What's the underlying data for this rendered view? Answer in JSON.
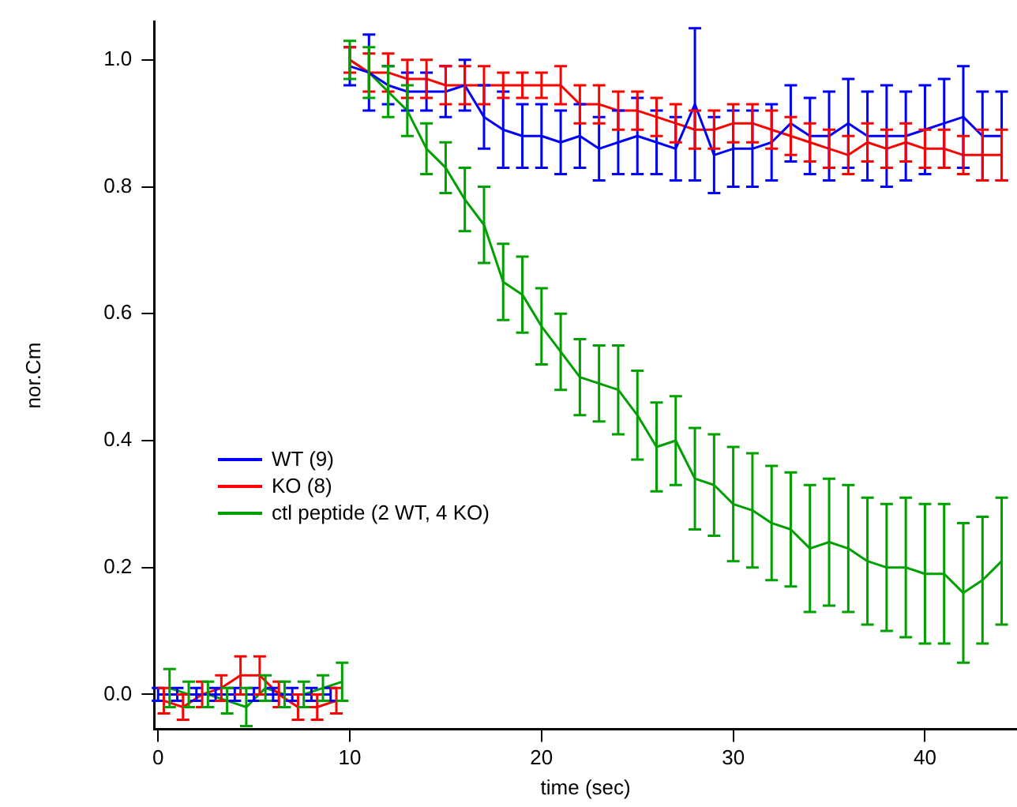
{
  "chart_data": {
    "type": "line",
    "xlabel": "time (sec)",
    "ylabel": "nor.Cm",
    "x": [
      0,
      1,
      2,
      3,
      4,
      5,
      6,
      7,
      8,
      9,
      9.5,
      10,
      11,
      12,
      13,
      14,
      15,
      16,
      17,
      18,
      19,
      20,
      21,
      22,
      23,
      24,
      25,
      26,
      27,
      28,
      29,
      30,
      31,
      32,
      33,
      34,
      35,
      36,
      37,
      38,
      39,
      40,
      41,
      42,
      43,
      44
    ],
    "series": [
      {
        "name": "WT (9)",
        "color": "#0000ff",
        "values": [
          0,
          0,
          0,
          0,
          0,
          0,
          0,
          0,
          0,
          0,
          null,
          0.99,
          0.98,
          0.96,
          0.95,
          0.95,
          0.95,
          0.96,
          0.91,
          0.89,
          0.88,
          0.88,
          0.87,
          0.88,
          0.86,
          0.87,
          0.88,
          0.87,
          0.86,
          0.93,
          0.85,
          0.86,
          0.86,
          0.87,
          0.9,
          0.88,
          0.88,
          0.9,
          0.88,
          0.88,
          0.88,
          0.89,
          0.9,
          0.91,
          0.88,
          0.88
        ],
        "errors": [
          0.01,
          0.01,
          0.01,
          0.01,
          0.01,
          0.01,
          0.01,
          0.01,
          0.01,
          0.01,
          null,
          0.03,
          0.06,
          0.03,
          0.03,
          0.03,
          0.04,
          0.04,
          0.05,
          0.06,
          0.05,
          0.05,
          0.05,
          0.05,
          0.05,
          0.05,
          0.06,
          0.05,
          0.05,
          0.12,
          0.06,
          0.06,
          0.06,
          0.06,
          0.06,
          0.06,
          0.07,
          0.07,
          0.07,
          0.08,
          0.07,
          0.07,
          0.07,
          0.08,
          0.07,
          0.07
        ]
      },
      {
        "name": "KO (8)",
        "color": "#ff0000",
        "x": [
          0.3,
          1.3,
          2.3,
          3.3,
          4.3,
          5.3,
          6.3,
          7.3,
          8.3,
          9.3,
          9.8,
          10,
          11,
          12,
          13,
          14,
          15,
          16,
          17,
          18,
          19,
          20,
          21,
          22,
          23,
          24,
          25,
          26,
          27,
          28,
          29,
          30,
          31,
          32,
          33,
          34,
          35,
          36,
          37,
          38,
          39,
          40,
          41,
          42,
          43,
          44
        ],
        "values": [
          -0.01,
          -0.02,
          0,
          0.01,
          0.03,
          0.03,
          0,
          -0.02,
          -0.02,
          -0.01,
          null,
          1,
          0.98,
          0.98,
          0.97,
          0.97,
          0.96,
          0.96,
          0.96,
          0.96,
          0.96,
          0.96,
          0.96,
          0.93,
          0.93,
          0.92,
          0.92,
          0.91,
          0.9,
          0.89,
          0.89,
          0.9,
          0.9,
          0.89,
          0.88,
          0.87,
          0.86,
          0.85,
          0.87,
          0.86,
          0.87,
          0.86,
          0.86,
          0.85,
          0.85,
          0.85
        ],
        "errors": [
          0.02,
          0.02,
          0.02,
          0.02,
          0.03,
          0.03,
          0.02,
          0.02,
          0.02,
          0.02,
          null,
          0.02,
          0.03,
          0.03,
          0.03,
          0.03,
          0.03,
          0.03,
          0.03,
          0.02,
          0.02,
          0.02,
          0.03,
          0.03,
          0.03,
          0.03,
          0.03,
          0.03,
          0.03,
          0.03,
          0.03,
          0.03,
          0.03,
          0.03,
          0.03,
          0.03,
          0.03,
          0.03,
          0.03,
          0.03,
          0.03,
          0.03,
          0.03,
          0.03,
          0.04,
          0.04
        ]
      },
      {
        "name": "ctl peptide (2 WT, 4 KO)",
        "color": "#00a000",
        "x": [
          0.6,
          1.6,
          2.6,
          3.6,
          4.6,
          5.6,
          6.6,
          7.6,
          8.6,
          9.6,
          9.8,
          10,
          11,
          12,
          13,
          14,
          15,
          16,
          17,
          18,
          19,
          20,
          21,
          22,
          23,
          24,
          25,
          26,
          27,
          28,
          29,
          30,
          31,
          32,
          33,
          34,
          35,
          36,
          37,
          38,
          39,
          40,
          41,
          42,
          43,
          44
        ],
        "values": [
          0.01,
          0,
          0,
          -0.01,
          -0.02,
          0.01,
          0,
          0,
          0.01,
          0.02,
          null,
          1,
          0.98,
          0.95,
          0.92,
          0.86,
          0.83,
          0.78,
          0.74,
          0.65,
          0.63,
          0.58,
          0.54,
          0.5,
          0.49,
          0.48,
          0.44,
          0.39,
          0.4,
          0.34,
          0.33,
          0.3,
          0.29,
          0.27,
          0.26,
          0.23,
          0.24,
          0.23,
          0.21,
          0.2,
          0.2,
          0.19,
          0.19,
          0.16,
          0.18,
          0.21
        ],
        "errors": [
          0.03,
          0.02,
          0.02,
          0.02,
          0.03,
          0.02,
          0.02,
          0.02,
          0.02,
          0.03,
          null,
          0.03,
          0.04,
          0.04,
          0.04,
          0.04,
          0.04,
          0.05,
          0.06,
          0.06,
          0.06,
          0.06,
          0.06,
          0.06,
          0.06,
          0.07,
          0.07,
          0.07,
          0.07,
          0.08,
          0.08,
          0.09,
          0.09,
          0.09,
          0.09,
          0.1,
          0.1,
          0.1,
          0.1,
          0.1,
          0.11,
          0.11,
          0.11,
          0.11,
          0.1,
          0.1
        ]
      }
    ],
    "xlim": [
      -0.2,
      44.8
    ],
    "xticks": [
      0,
      10,
      20,
      30,
      40
    ],
    "ylim": [
      -0.055,
      1.06
    ],
    "yticks": [
      {
        "value": 0,
        "label": "0.0"
      },
      {
        "value": 0.2,
        "label": "0.2"
      },
      {
        "value": 0.4,
        "label": "0.4"
      },
      {
        "value": 0.6,
        "label": "0.6"
      },
      {
        "value": 0.8,
        "label": "0.8"
      },
      {
        "value": 1,
        "label": "1.0"
      }
    ],
    "grid": false,
    "legend": "left",
    "marker": "none",
    "line_style": "solid"
  }
}
